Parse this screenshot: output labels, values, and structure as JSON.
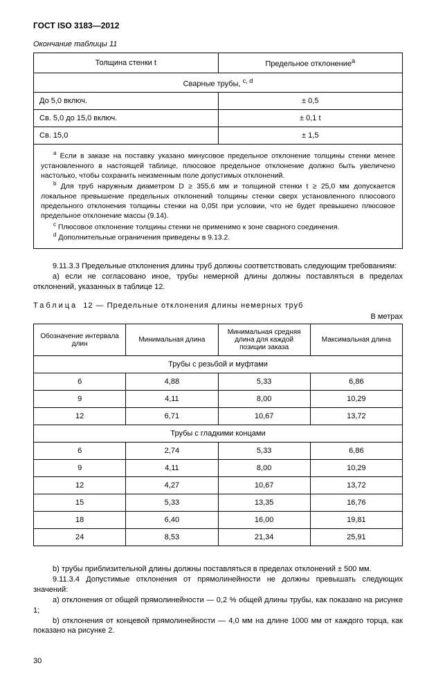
{
  "doc": {
    "title": "ГОСТ ISO 3183—2012",
    "page_number": "30"
  },
  "table11": {
    "caption": "Окончание таблицы 11",
    "col1_header": "Толщина стенки t",
    "col2_header_html": "Предельное отклонение<sup>a</sup>",
    "section_header_html": "Сварные трубы, <sup>c, d</sup>",
    "rows": [
      {
        "c1": "До 5,0 включ.",
        "c2": "± 0,5"
      },
      {
        "c1": "Св. 5,0 до 15,0 включ.",
        "c2": "± 0,1 t"
      },
      {
        "c1": "Св. 15,0",
        "c2": "± 1,5"
      }
    ],
    "notes": {
      "a": "Если в заказе на поставку указано минусовое предельное отклонение толщины стенки менее установленного в настоящей таблице, плюсовое предельное отклонение должно быть увеличено настолько, чтобы сохранить неизменным поле допустимых отклонений.",
      "b": "Для труб наружным диаметром  D ≥ 355,6 мм и толщиной стенки  t ≥ 25,0 мм допускается локальное превышение предельных отклонений толщины стенки сверх установленного плюсового предельного отклонения толщины стенки на 0,05t при условии, что не будет превышено плюсовое предельное отклонение массы (9.14).",
      "c": "Плюсовое отклонение толщины стенки не применимо к зоне сварного соединения.",
      "d": "Дополнительные ограничения приведены в 9.13.2."
    }
  },
  "body1": {
    "p1": "9.11.3.3 Предельные отклонения длины труб должны соответствовать следующим требованиям:",
    "p2": "a) если не согласовано иное, трубы немерной длины должны поставляться в пределах отклонений, указанных в таблице 12."
  },
  "table12": {
    "caption_prefix": "Таблица",
    "caption_rest": "12 — Предельные отклонения длины немерных труб",
    "unit": "В метрах",
    "headers": {
      "h1": "Обозначение интервала длин",
      "h2": "Минимальная длина",
      "h3": "Минимальная средняя длина для каждой позиции заказа",
      "h4": "Максимальная длина"
    },
    "section1_title": "Трубы с резьбой и муфтами",
    "section1_rows": [
      {
        "c1": "6",
        "c2": "4,88",
        "c3": "5,33",
        "c4": "6,86"
      },
      {
        "c1": "9",
        "c2": "4,11",
        "c3": "8,00",
        "c4": "10,29"
      },
      {
        "c1": "12",
        "c2": "6,71",
        "c3": "10,67",
        "c4": "13,72"
      }
    ],
    "section2_title": "Трубы с гладкими концами",
    "section2_rows": [
      {
        "c1": "6",
        "c2": "2,74",
        "c3": "5,33",
        "c4": "6,86"
      },
      {
        "c1": "9",
        "c2": "4,11",
        "c3": "8,00",
        "c4": "10,29"
      },
      {
        "c1": "12",
        "c2": "4,27",
        "c3": "10,67",
        "c4": "13,72"
      },
      {
        "c1": "15",
        "c2": "5,33",
        "c3": "13,35",
        "c4": "16,76"
      },
      {
        "c1": "18",
        "c2": "6,40",
        "c3": "16,00",
        "c4": "19,81"
      },
      {
        "c1": "24",
        "c2": "8,53",
        "c3": "21,34",
        "c4": "25,91"
      }
    ]
  },
  "body2": {
    "p1": "b) трубы приблизительной длины должны поставляться в пределах отклонений ± 500 мм.",
    "p2": "9.11.3.4 Допустимые отклонения от прямолинейности не должны превышать следующих значений:",
    "p3": "a) отклонения от общей прямолинейности — 0,2 % общей длины трубы, как показано на рисунке 1;",
    "p4": "b) отклонения от концевой прямолинейности — 4,0 мм на длине 1000 мм от каждого торца, как показано на рисунке 2."
  }
}
